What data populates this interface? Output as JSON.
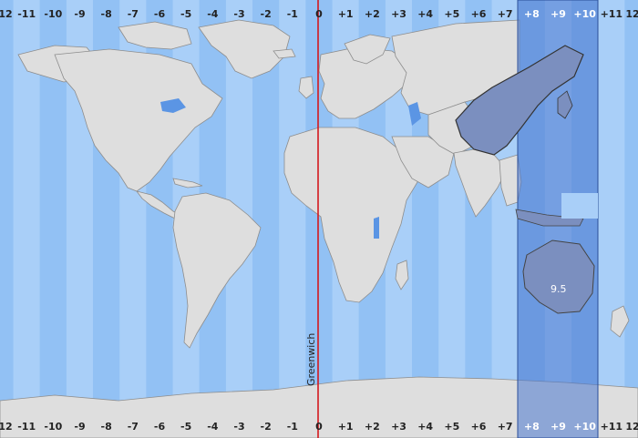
{
  "map": {
    "top_labels": [
      "12",
      "-11",
      "-10",
      "-9",
      "-8",
      "-7",
      "-6",
      "-5",
      "-4",
      "-3",
      "-2",
      "-1",
      "0",
      "+1",
      "+2",
      "+3",
      "+4",
      "+5",
      "+6",
      "+7",
      "+8",
      "+9",
      "+10",
      "+11",
      "12"
    ],
    "bottom_labels": [
      "12",
      "-11",
      "-10",
      "-9",
      "-8",
      "-7",
      "-6",
      "-5",
      "-4",
      "-3",
      "-2",
      "-1",
      "0",
      "+1",
      "+2",
      "+3",
      "+4",
      "+5",
      "+6",
      "+7",
      "+8",
      "+9",
      "+10",
      "+11",
      "12"
    ],
    "highlighted_offsets": [
      "+8",
      "+9",
      "+10"
    ],
    "prime_meridian_label": "Greenwich",
    "special_zone_label": "9.5",
    "colors": {
      "ocean_light": "#a9cff8",
      "ocean_dark": "#92c1f4",
      "land": "#dedede",
      "land_border": "#8d8d8d",
      "highlight_zone": "#4a78d0",
      "highlight_land": "#7b8fbf",
      "meridian": "#d4181d",
      "lakes": "#5b95e4"
    }
  }
}
